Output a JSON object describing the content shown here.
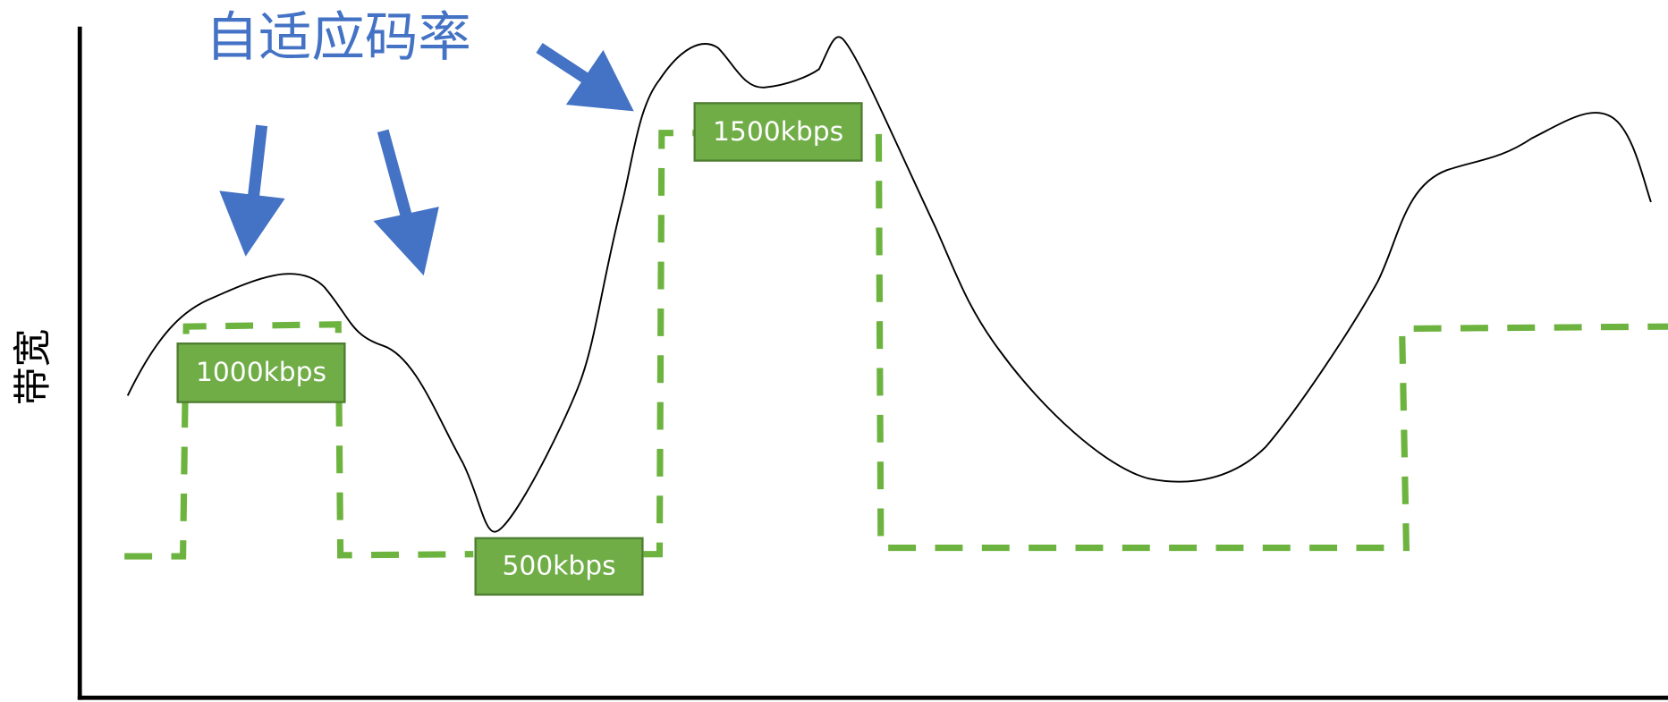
{
  "title": "自适应码率",
  "y_axis_label": "带宽",
  "labels": [
    "1000kbps",
    "500kbps",
    "1500kbps"
  ]
}
